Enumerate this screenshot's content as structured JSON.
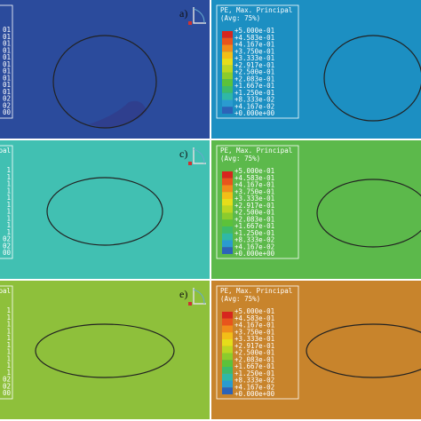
{
  "panels": [
    {
      "label": "a)",
      "legend": {
        "entries": [
          "01",
          "01",
          "01",
          "01",
          "01",
          "01",
          "01",
          "01",
          "01",
          "01",
          "02",
          "02",
          "00"
        ]
      }
    },
    {
      "legend": {
        "title": "PE, Max. Principal",
        "subtitle": "(Avg: 75%)",
        "entries": [
          "+5.000e-01",
          "+4.583e-01",
          "+4.167e-01",
          "+3.750e-01",
          "+3.333e-01",
          "+2.917e-01",
          "+2.500e-01",
          "+2.083e-01",
          "+1.667e-01",
          "+1.250e-01",
          "+8.333e-02",
          "+4.167e-02",
          "+0.000e+00"
        ]
      }
    },
    {
      "label": "c)",
      "legend": {
        "title": "pal",
        "entries": [
          "1",
          "1",
          "1",
          "1",
          "1",
          "1",
          "1",
          "1",
          "1",
          "1",
          "02",
          "02",
          "00"
        ]
      }
    },
    {
      "legend": {
        "title": "PE, Max. Principal",
        "subtitle": "(Avg: 75%)",
        "entries": [
          "+5.000e-01",
          "+4.583e-01",
          "+4.167e-01",
          "+3.750e-01",
          "+3.333e-01",
          "+2.917e-01",
          "+2.500e-01",
          "+2.083e-01",
          "+1.667e-01",
          "+1.250e-01",
          "+8.333e-02",
          "+4.167e-02",
          "+0.000e+00"
        ]
      }
    },
    {
      "label": "e)",
      "legend": {
        "title": "pal",
        "entries": [
          "1",
          "1",
          "1",
          "1",
          "1",
          "1",
          "1",
          "1",
          "1",
          "1",
          "02",
          "02",
          "00"
        ]
      }
    },
    {
      "legend": {
        "title": "PE, Max. Principal",
        "subtitle": "(Avg: 75%)",
        "entries": [
          "+5.000e-01",
          "+4.583e-01",
          "+4.167e-01",
          "+3.750e-01",
          "+3.333e-01",
          "+2.917e-01",
          "+2.500e-01",
          "+2.083e-01",
          "+1.667e-01",
          "+1.250e-01",
          "+8.333e-02",
          "+4.167e-02",
          "+0.000e+00"
        ]
      }
    }
  ]
}
